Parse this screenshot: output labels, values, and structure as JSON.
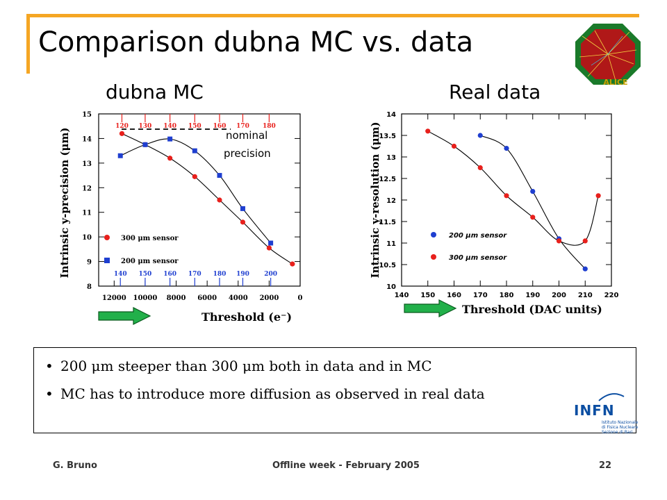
{
  "title": "Comparison dubna MC vs. data",
  "colors": {
    "accent": "#f5a623",
    "series_red": "#e8201c",
    "series_blue": "#1f3fd0",
    "arrow_green": "#22b04a"
  },
  "panels": {
    "left_title": "dubna MC",
    "right_title": "Real data"
  },
  "chart_data": [
    {
      "type": "scatter",
      "name": "dubna MC",
      "xlabel": "Threshold (e⁻)",
      "ylabel": "Intrinsic y-precision (μm)",
      "xlim": [
        13000,
        0
      ],
      "ylim": [
        8,
        15
      ],
      "x_ticks": [
        "12000",
        "10000",
        "8000",
        "6000",
        "4000",
        "2000",
        "0"
      ],
      "y_ticks": [
        "8",
        "9",
        "10",
        "11",
        "12",
        "13",
        "14",
        "15"
      ],
      "top_dac_labels": [
        "120",
        "130",
        "140",
        "150",
        "160",
        "170",
        "180"
      ],
      "bottom_dac_labels": [
        "140",
        "150",
        "160",
        "170",
        "180",
        "190",
        "200"
      ],
      "annotation": {
        "line1": "nominal",
        "line2": "precision"
      },
      "legend_position": "lower-left",
      "series": [
        {
          "name": "300 μm sensor",
          "marker": "circle",
          "color": "#e8201c",
          "points": [
            [
              11500,
              14.2
            ],
            [
              10000,
              13.75
            ],
            [
              8400,
              13.2
            ],
            [
              6800,
              12.45
            ],
            [
              5200,
              11.5
            ],
            [
              3700,
              10.6
            ],
            [
              2000,
              9.55
            ],
            [
              500,
              8.9
            ]
          ]
        },
        {
          "name": "200 μm sensor",
          "marker": "square",
          "color": "#1f3fd0",
          "points": [
            [
              11600,
              13.3
            ],
            [
              10000,
              13.75
            ],
            [
              8400,
              13.98
            ],
            [
              6800,
              13.5
            ],
            [
              5200,
              12.5
            ],
            [
              3700,
              11.15
            ],
            [
              1900,
              9.75
            ]
          ]
        }
      ]
    },
    {
      "type": "scatter",
      "name": "Real data",
      "xlabel": "Threshold (DAC units)",
      "ylabel": "Intrinsic y-resolution (μm)",
      "xlim": [
        140,
        220
      ],
      "ylim": [
        10,
        14
      ],
      "x_ticks": [
        "140",
        "150",
        "160",
        "170",
        "180",
        "190",
        "200",
        "210",
        "220"
      ],
      "y_ticks": [
        "10",
        "10.5",
        "11",
        "11.5",
        "12",
        "12.5",
        "13",
        "13.5",
        "14"
      ],
      "legend_position": "lower-left",
      "series": [
        {
          "name": "200 μm sensor",
          "marker": "circle",
          "color": "#1f3fd0",
          "points": [
            [
              170,
              13.5
            ],
            [
              180,
              13.2
            ],
            [
              190,
              12.2
            ],
            [
              200,
              11.1
            ],
            [
              210,
              10.4
            ]
          ]
        },
        {
          "name": "300 μm sensor",
          "marker": "circle",
          "color": "#e8201c",
          "points": [
            [
              150,
              13.6
            ],
            [
              160,
              13.25
            ],
            [
              170,
              12.75
            ],
            [
              180,
              12.1
            ],
            [
              190,
              11.6
            ],
            [
              200,
              11.05
            ],
            [
              210,
              11.05
            ],
            [
              215,
              12.1
            ]
          ]
        }
      ]
    }
  ],
  "notes": [
    {
      "text": "200 μm steeper than 300 μm both in data and in MC"
    },
    {
      "text": "MC has to introduce more diffusion as observed in real data"
    }
  ],
  "logos": {
    "top_right": "ALICE",
    "bottom_right": "INFN",
    "bottom_right_small1": "Istituto Nazionale",
    "bottom_right_small2": "di Fisica Nucleare",
    "bottom_right_small3": "Sezione di Bari"
  },
  "footer": {
    "left": "G. Bruno",
    "center": "Offline week - February  2005",
    "right": "22"
  }
}
